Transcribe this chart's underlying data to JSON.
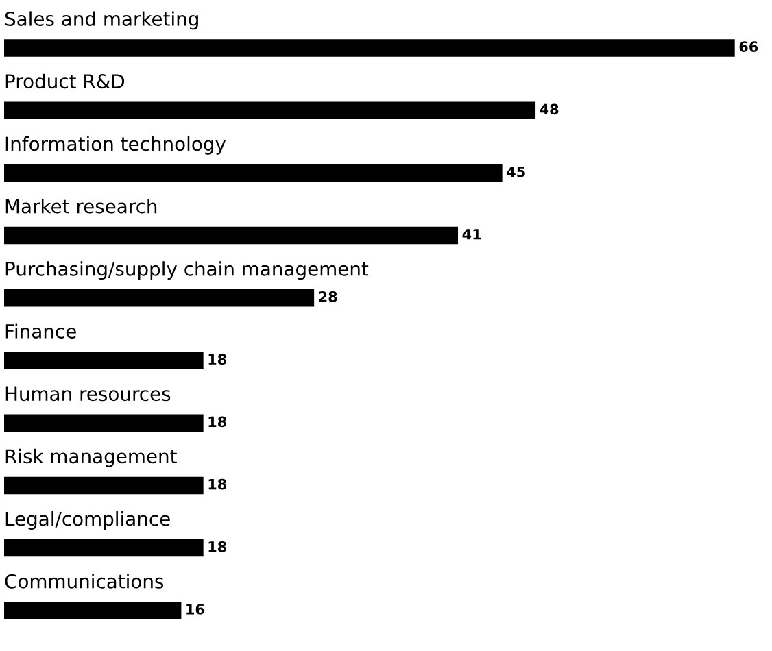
{
  "chart_data": {
    "type": "bar",
    "orientation": "horizontal",
    "categories": [
      "Sales and marketing",
      "Product R&D",
      "Information technology",
      "Market research",
      "Purchasing/supply chain management",
      "Finance",
      "Human resources",
      "Risk management",
      "Legal/compliance",
      "Communications"
    ],
    "values": [
      66,
      48,
      45,
      41,
      28,
      18,
      18,
      18,
      18,
      16
    ],
    "color": "#000000",
    "data_labels": true
  }
}
